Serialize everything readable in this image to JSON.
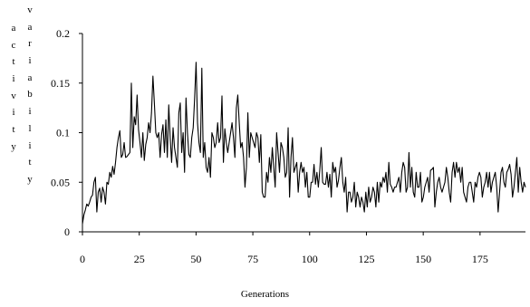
{
  "chart_data": {
    "type": "line",
    "title": "",
    "xlabel": "Generations",
    "ylabel": "activity variability",
    "ylabel_words": [
      "activity",
      "variability"
    ],
    "xlim": [
      0,
      195
    ],
    "ylim": [
      0,
      0.2
    ],
    "xticks": [
      0,
      25,
      50,
      75,
      100,
      125,
      150,
      175
    ],
    "yticks": [
      0,
      0.05,
      0.1,
      0.15,
      0.2
    ],
    "ytick_labels": [
      "0",
      "0.05",
      "0.1",
      "0.15",
      "0.2"
    ],
    "grid": false,
    "legend": "none",
    "line_color": "#000000",
    "series": [
      {
        "values": [
          0.008,
          0.017,
          0.022,
          0.028,
          0.026,
          0.03,
          0.035,
          0.037,
          0.05,
          0.055,
          0.02,
          0.04,
          0.044,
          0.03,
          0.045,
          0.04,
          0.028,
          0.05,
          0.048,
          0.06,
          0.055,
          0.066,
          0.058,
          0.07,
          0.085,
          0.095,
          0.102,
          0.075,
          0.078,
          0.09,
          0.075,
          0.076,
          0.078,
          0.08,
          0.15,
          0.085,
          0.116,
          0.108,
          0.138,
          0.103,
          0.09,
          0.075,
          0.1,
          0.072,
          0.088,
          0.095,
          0.11,
          0.1,
          0.12,
          0.157,
          0.13,
          0.1,
          0.095,
          0.1,
          0.075,
          0.098,
          0.108,
          0.08,
          0.113,
          0.075,
          0.128,
          0.095,
          0.07,
          0.105,
          0.085,
          0.075,
          0.065,
          0.12,
          0.13,
          0.08,
          0.1,
          0.06,
          0.135,
          0.1,
          0.078,
          0.075,
          0.095,
          0.105,
          0.135,
          0.171,
          0.11,
          0.09,
          0.08,
          0.165,
          0.075,
          0.09,
          0.065,
          0.06,
          0.075,
          0.055,
          0.1,
          0.095,
          0.085,
          0.09,
          0.11,
          0.09,
          0.095,
          0.137,
          0.07,
          0.104,
          0.09,
          0.08,
          0.09,
          0.1,
          0.11,
          0.095,
          0.075,
          0.125,
          0.138,
          0.11,
          0.085,
          0.09,
          0.075,
          0.045,
          0.065,
          0.12,
          0.075,
          0.1,
          0.095,
          0.09,
          0.085,
          0.1,
          0.095,
          0.07,
          0.098,
          0.04,
          0.035,
          0.035,
          0.06,
          0.05,
          0.075,
          0.06,
          0.085,
          0.065,
          0.045,
          0.1,
          0.08,
          0.06,
          0.09,
          0.085,
          0.075,
          0.055,
          0.06,
          0.105,
          0.035,
          0.075,
          0.095,
          0.06,
          0.065,
          0.07,
          0.04,
          0.06,
          0.07,
          0.06,
          0.065,
          0.045,
          0.06,
          0.035,
          0.035,
          0.05,
          0.05,
          0.068,
          0.048,
          0.06,
          0.045,
          0.062,
          0.085,
          0.05,
          0.048,
          0.048,
          0.06,
          0.045,
          0.058,
          0.035,
          0.07,
          0.06,
          0.065,
          0.045,
          0.052,
          0.065,
          0.075,
          0.05,
          0.04,
          0.055,
          0.02,
          0.04,
          0.04,
          0.03,
          0.035,
          0.05,
          0.025,
          0.04,
          0.035,
          0.025,
          0.035,
          0.03,
          0.02,
          0.04,
          0.025,
          0.045,
          0.03,
          0.035,
          0.045,
          0.04,
          0.025,
          0.05,
          0.03,
          0.05,
          0.045,
          0.055,
          0.05,
          0.06,
          0.04,
          0.07,
          0.048,
          0.045,
          0.04,
          0.045,
          0.045,
          0.05,
          0.055,
          0.04,
          0.06,
          0.07,
          0.065,
          0.04,
          0.045,
          0.08,
          0.045,
          0.065,
          0.04,
          0.035,
          0.06,
          0.045,
          0.045,
          0.06,
          0.03,
          0.035,
          0.045,
          0.05,
          0.055,
          0.04,
          0.062,
          0.063,
          0.065,
          0.025,
          0.04,
          0.05,
          0.055,
          0.045,
          0.04,
          0.045,
          0.05,
          0.065,
          0.055,
          0.04,
          0.03,
          0.06,
          0.07,
          0.055,
          0.07,
          0.06,
          0.065,
          0.05,
          0.065,
          0.04,
          0.035,
          0.03,
          0.045,
          0.05,
          0.05,
          0.04,
          0.03,
          0.05,
          0.045,
          0.055,
          0.06,
          0.055,
          0.035,
          0.045,
          0.05,
          0.06,
          0.045,
          0.06,
          0.04,
          0.05,
          0.055,
          0.06,
          0.045,
          0.02,
          0.04,
          0.06,
          0.065,
          0.05,
          0.045,
          0.06,
          0.063,
          0.068,
          0.058,
          0.035,
          0.045,
          0.06,
          0.075,
          0.04,
          0.065,
          0.05,
          0.04,
          0.05,
          0.045
        ]
      }
    ]
  }
}
